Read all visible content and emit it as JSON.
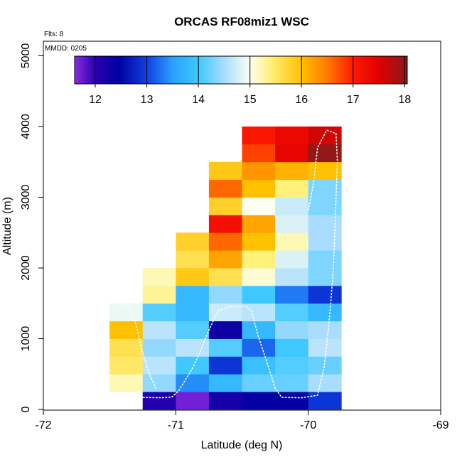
{
  "chart_data": {
    "type": "heatmap",
    "title": "ORCAS RF08miz1 WSC",
    "xlabel": "Latitude (deg N)",
    "ylabel": "Altitude (m)",
    "xlim": [
      -72,
      -69
    ],
    "ylim": [
      0,
      5200
    ],
    "x_ticks": [
      -72,
      -71,
      -70,
      -69
    ],
    "y_ticks": [
      0,
      1000,
      2000,
      3000,
      4000,
      5000
    ],
    "annotations": {
      "flights": "Flts: 8",
      "mmdd": "MMDD: 0205"
    },
    "colorbar": {
      "range": [
        11.6,
        18.05
      ],
      "ticks": [
        12,
        13,
        14,
        15,
        16,
        17,
        18
      ],
      "stops": [
        {
          "v": 11.6,
          "c": "#8a2be2"
        },
        {
          "v": 12.0,
          "c": "#2b00b0"
        },
        {
          "v": 12.45,
          "c": "#0000a0"
        },
        {
          "v": 13.0,
          "c": "#1040e0"
        },
        {
          "v": 13.5,
          "c": "#2aa0ff"
        },
        {
          "v": 14.0,
          "c": "#3ec8ff"
        },
        {
          "v": 14.5,
          "c": "#a8ddff"
        },
        {
          "v": 15.0,
          "c": "#fcfff0"
        },
        {
          "v": 15.4,
          "c": "#fff07a"
        },
        {
          "v": 16.0,
          "c": "#ffc000"
        },
        {
          "v": 16.5,
          "c": "#ff7a00"
        },
        {
          "v": 17.0,
          "c": "#ff1a00"
        },
        {
          "v": 17.5,
          "c": "#e00000"
        },
        {
          "v": 18.05,
          "c": "#8b1a1a"
        }
      ]
    },
    "cell_size": {
      "lat": 0.25,
      "alt": 250
    },
    "columns": [
      {
        "lat_min": -71.5,
        "alt_min": 250,
        "values": [
          15.2,
          15.5,
          15.6,
          16.0,
          14.9
        ]
      },
      {
        "lat_min": -71.25,
        "alt_min": 0,
        "values": [
          12.1,
          14.4,
          14.6,
          14.4,
          14.6,
          14.1,
          15.3,
          15.2
        ]
      },
      {
        "lat_min": -71.0,
        "alt_min": 0,
        "values": [
          11.7,
          13.4,
          14.0,
          14.6,
          14.1,
          13.8,
          13.8,
          15.9,
          15.6,
          15.8
        ]
      },
      {
        "lat_min": -70.75,
        "alt_min": 0,
        "values": [
          12.2,
          13.8,
          12.9,
          14.1,
          12.3,
          14.7,
          14.4,
          15.6,
          16.2,
          16.6,
          17.2,
          15.8,
          16.6,
          15.9
        ]
      },
      {
        "lat_min": -70.5,
        "alt_min": 0,
        "values": [
          12.4,
          14.2,
          13.9,
          13.2,
          13.8,
          14.6,
          14.0,
          15.1,
          15.4,
          16.0,
          16.2,
          15.0,
          16.0,
          16.3,
          16.8,
          17.1
        ]
      },
      {
        "lat_min": -70.25,
        "alt_min": 0,
        "values": [
          12.4,
          14.2,
          14.1,
          14.0,
          14.4,
          14.1,
          13.3,
          14.6,
          14.8,
          15.2,
          14.8,
          14.7,
          15.4,
          16.1,
          17.4,
          17.3
        ]
      },
      {
        "lat_min": -70.0,
        "alt_min": 0,
        "values": [
          12.9,
          14.5,
          14.2,
          14.6,
          14.5,
          13.8,
          12.9,
          14.3,
          14.3,
          14.5,
          14.5,
          14.3,
          14.3,
          16.0,
          18.0,
          17.6
        ]
      }
    ],
    "flight_track": [
      [
        -71.27,
        170
      ],
      [
        -71.1,
        165
      ],
      [
        -71.03,
        175
      ],
      [
        -70.98,
        260
      ],
      [
        -70.88,
        560
      ],
      [
        -70.82,
        800
      ],
      [
        -70.75,
        1120
      ],
      [
        -70.68,
        1400
      ],
      [
        -70.58,
        1455
      ],
      [
        -70.47,
        1460
      ],
      [
        -70.43,
        1400
      ],
      [
        -70.38,
        1050
      ],
      [
        -70.3,
        600
      ],
      [
        -70.25,
        300
      ],
      [
        -70.2,
        170
      ],
      [
        -70.05,
        165
      ],
      [
        -69.93,
        200
      ],
      [
        -69.88,
        600
      ],
      [
        -69.85,
        1100
      ],
      [
        -69.83,
        1500
      ],
      [
        -69.81,
        2000
      ],
      [
        -69.8,
        2500
      ],
      [
        -69.79,
        3000
      ],
      [
        -69.78,
        3500
      ],
      [
        -69.79,
        3900
      ],
      [
        -69.86,
        3950
      ],
      [
        -69.93,
        3700
      ],
      [
        -69.96,
        3200
      ],
      [
        -70.0,
        2800
      ],
      [
        -71.45,
        1460
      ],
      [
        -71.35,
        1470
      ],
      [
        -71.3,
        1200
      ],
      [
        -71.25,
        800
      ],
      [
        -71.2,
        500
      ],
      [
        -71.15,
        300
      ]
    ],
    "flight_track_segments": [
      [
        0,
        29
      ],
      [
        29,
        35
      ]
    ]
  }
}
